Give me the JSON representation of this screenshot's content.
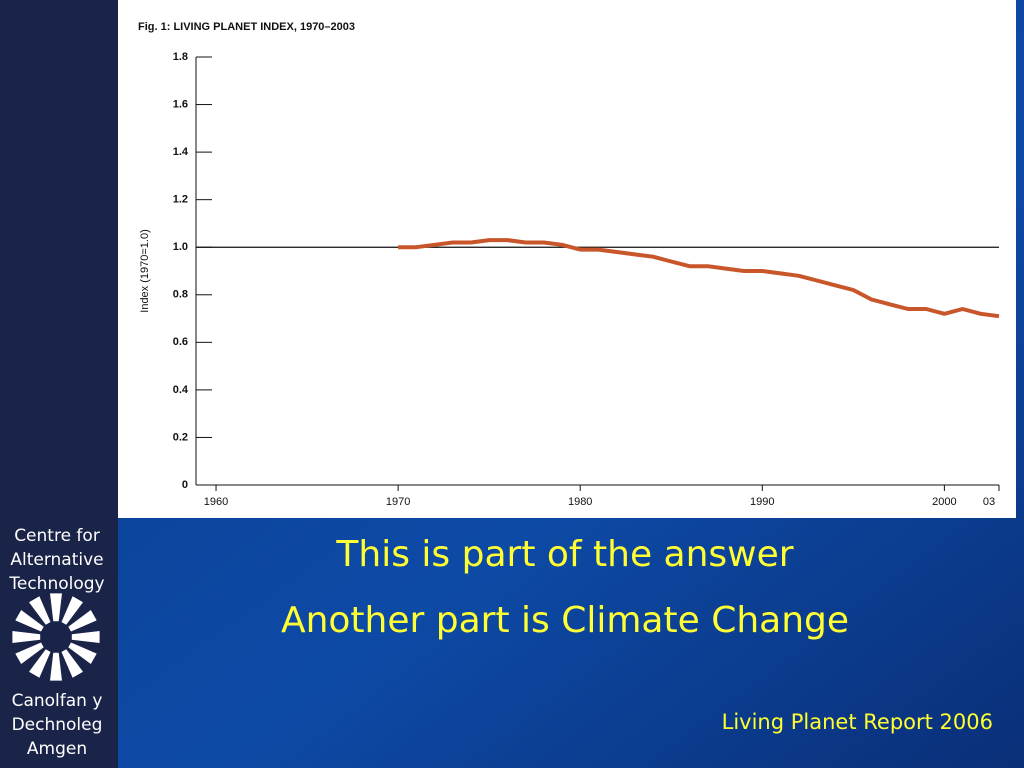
{
  "chart_data": {
    "type": "line",
    "title": "Fig. 1: LIVING PLANET INDEX, 1970–2003",
    "ylabel": "Index (1970=1.0)",
    "x": [
      1970,
      1971,
      1972,
      1973,
      1974,
      1975,
      1976,
      1977,
      1978,
      1979,
      1980,
      1981,
      1982,
      1983,
      1984,
      1985,
      1986,
      1987,
      1988,
      1989,
      1990,
      1991,
      1992,
      1993,
      1994,
      1995,
      1996,
      1997,
      1998,
      1999,
      2000,
      2001,
      2002,
      2003
    ],
    "values": [
      1.0,
      1.0,
      1.01,
      1.02,
      1.02,
      1.03,
      1.03,
      1.02,
      1.02,
      1.01,
      0.99,
      0.99,
      0.98,
      0.97,
      0.96,
      0.94,
      0.92,
      0.92,
      0.91,
      0.9,
      0.9,
      0.89,
      0.88,
      0.86,
      0.84,
      0.82,
      0.78,
      0.76,
      0.74,
      0.74,
      0.72,
      0.74,
      0.72,
      0.71
    ],
    "color": "#c8562a",
    "xlim": [
      1958.9,
      2003
    ],
    "xticks": [
      1960,
      1970,
      1980,
      1990,
      2000,
      {
        "value": 2003,
        "label": "03"
      }
    ],
    "ylim": [
      0,
      1.8
    ],
    "yticks": [
      0,
      0.2,
      0.4,
      0.6,
      0.8,
      {
        "value": 1,
        "label": "1.0"
      },
      1.2,
      1.4,
      1.6,
      1.8
    ],
    "reference_line": 1
  },
  "sidebar": {
    "top": [
      "Centre for",
      "Alternative",
      "Technology"
    ],
    "bottom": [
      "Canolfan y",
      "Dechnoleg",
      "Amgen"
    ]
  },
  "headline": [
    "This is part of the answer",
    "Another part is Climate Change"
  ],
  "source": "Living Planet Report 2006"
}
